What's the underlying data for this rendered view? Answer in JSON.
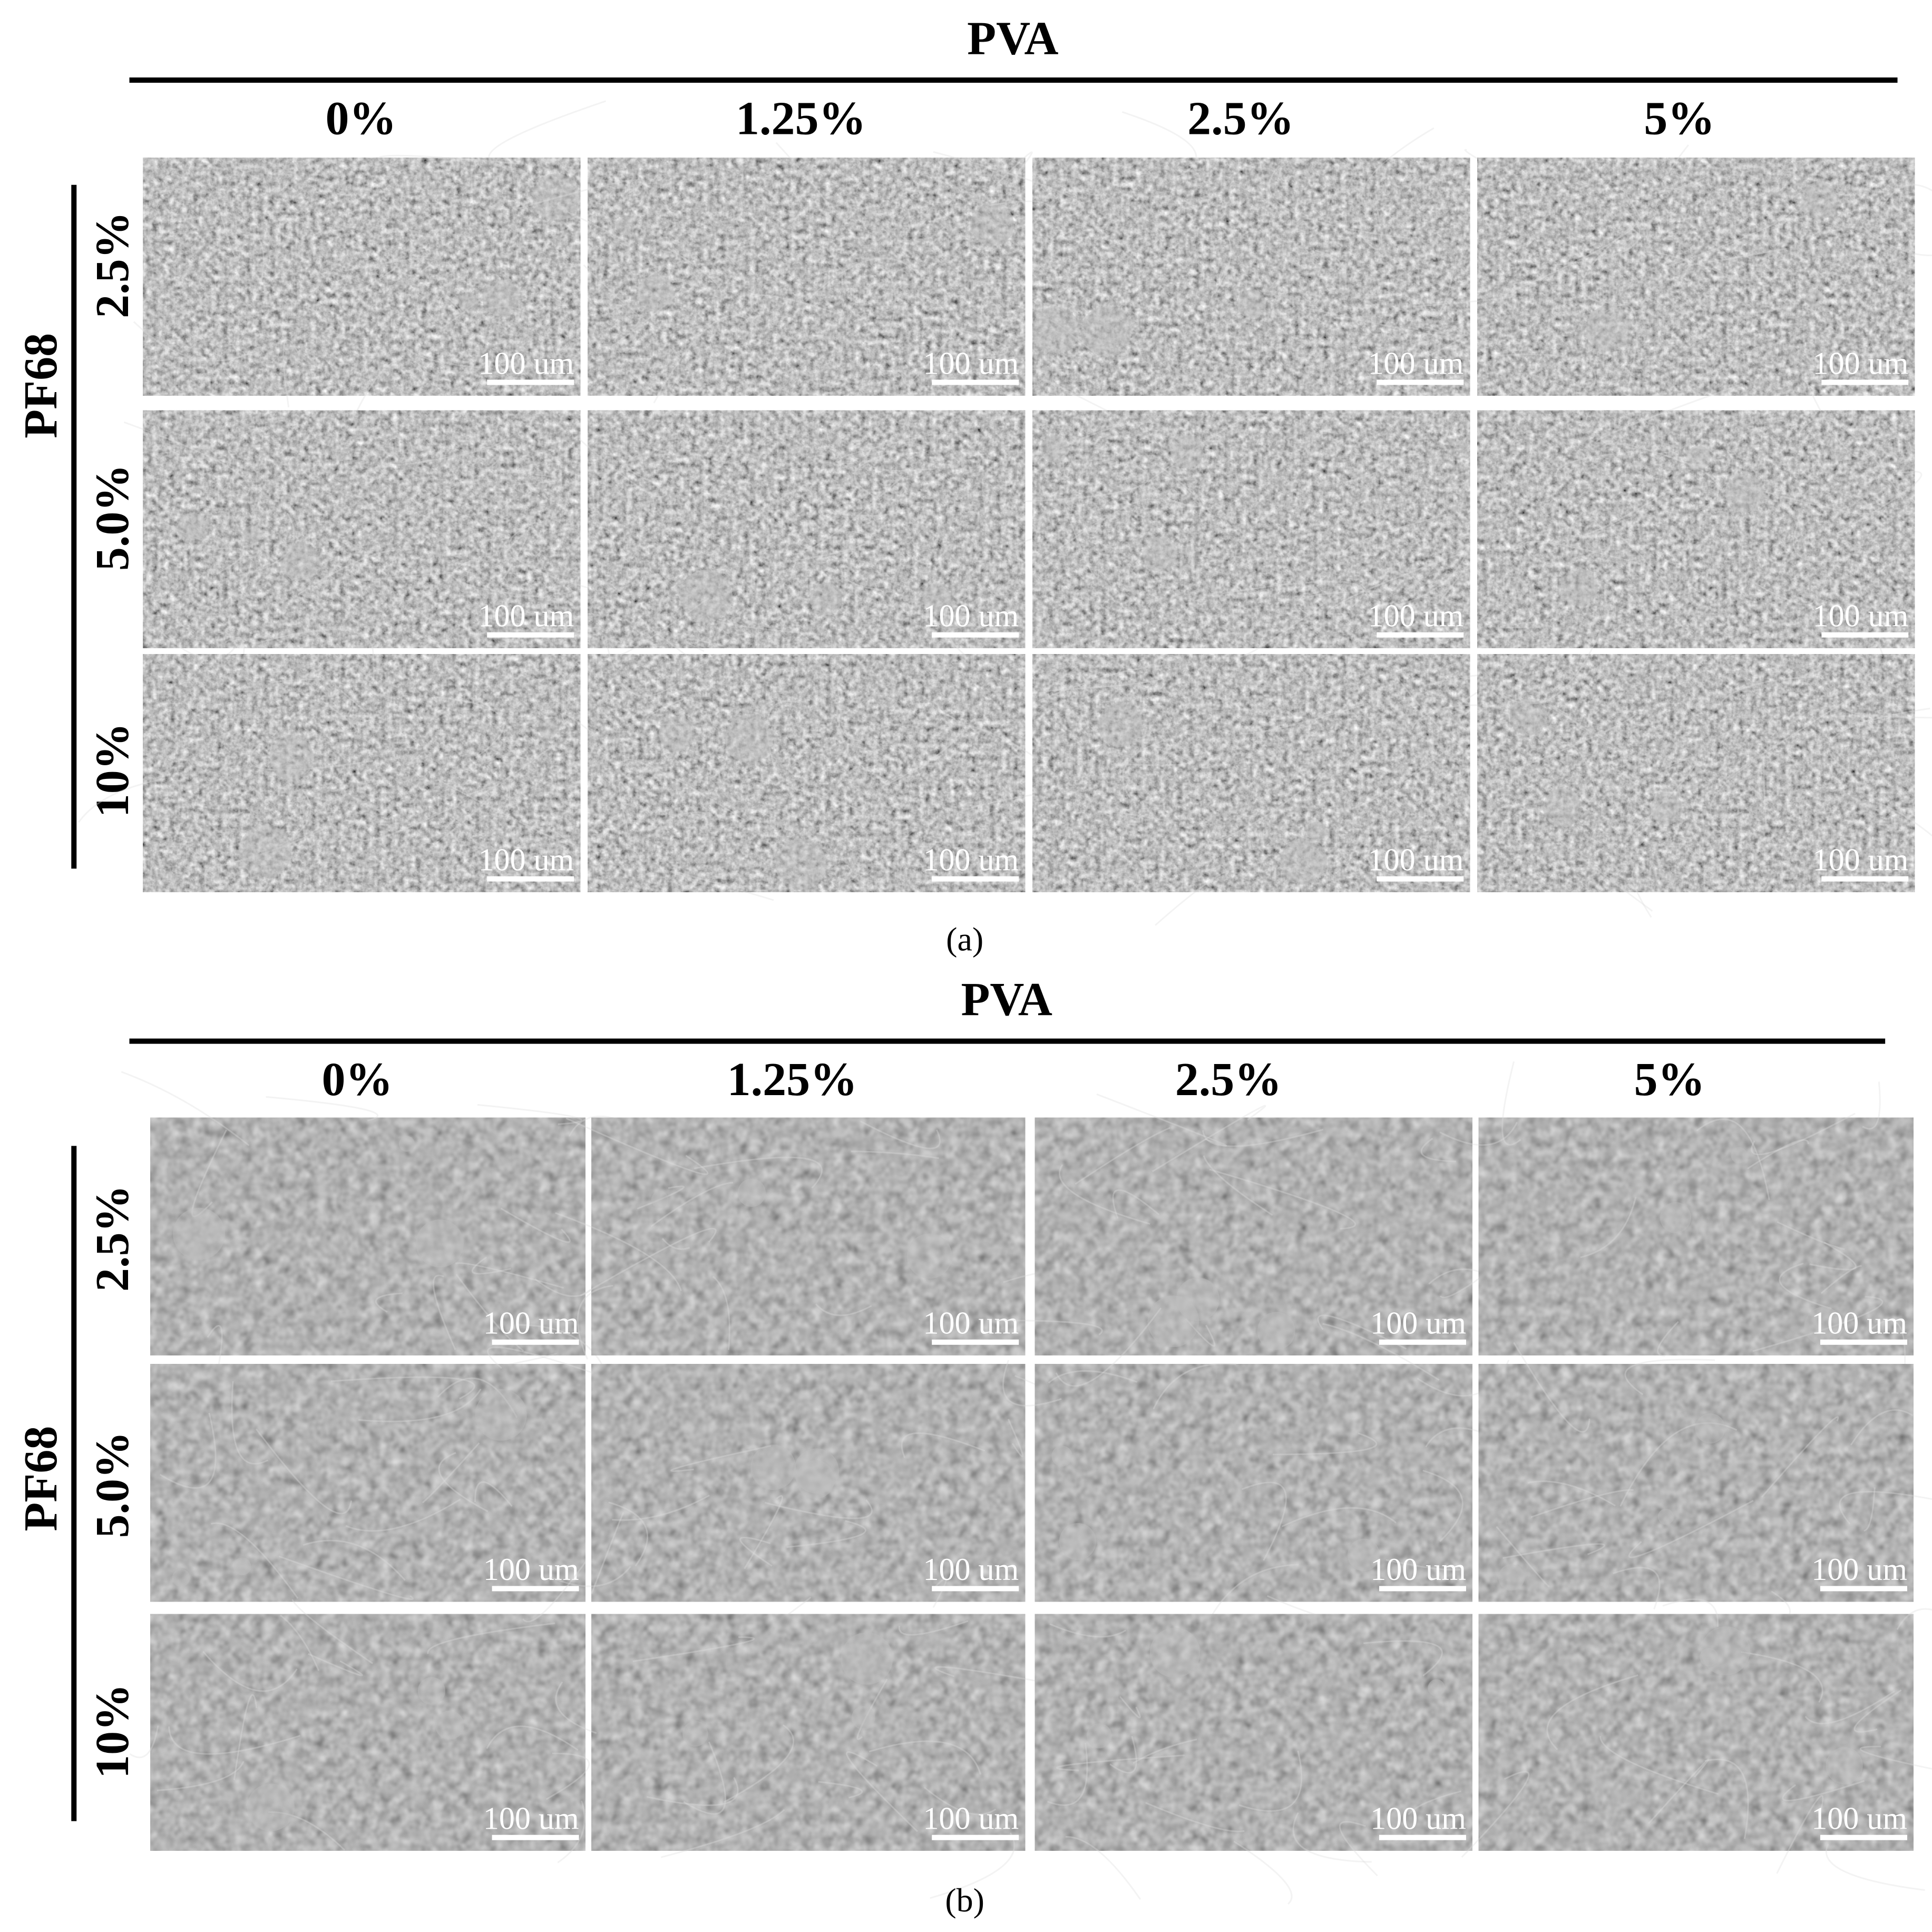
{
  "panels": [
    {
      "title": "PVA",
      "columns": [
        "0%",
        "1.25%",
        "2.5%",
        "5%"
      ],
      "row_axis": "PF68",
      "rows": [
        {
          "label": "2.5%",
          "scale_bars": [
            "100 um",
            "100 um",
            "100 um",
            "100 um"
          ]
        },
        {
          "label": "5.0%",
          "scale_bars": [
            "100 um",
            "100 um",
            "100 um",
            "100 um"
          ]
        },
        {
          "label": "10%",
          "scale_bars": [
            "100 um",
            "100 um",
            "100 um",
            "100 um"
          ]
        }
      ],
      "caption": "(a)"
    },
    {
      "title": "PVA",
      "columns": [
        "0%",
        "1.25%",
        "2.5%",
        "5%"
      ],
      "row_axis": "PF68",
      "rows": [
        {
          "label": "2.5%",
          "scale_bars": [
            "100 um",
            "100 um",
            "100 um",
            "100 um"
          ]
        },
        {
          "label": "5.0%",
          "scale_bars": [
            "100 um",
            "100 um",
            "100 um",
            "100 um"
          ]
        },
        {
          "label": "10%",
          "scale_bars": [
            "100 um",
            "100 um",
            "100 um",
            "100 um"
          ]
        }
      ],
      "caption": "(b)"
    }
  ]
}
